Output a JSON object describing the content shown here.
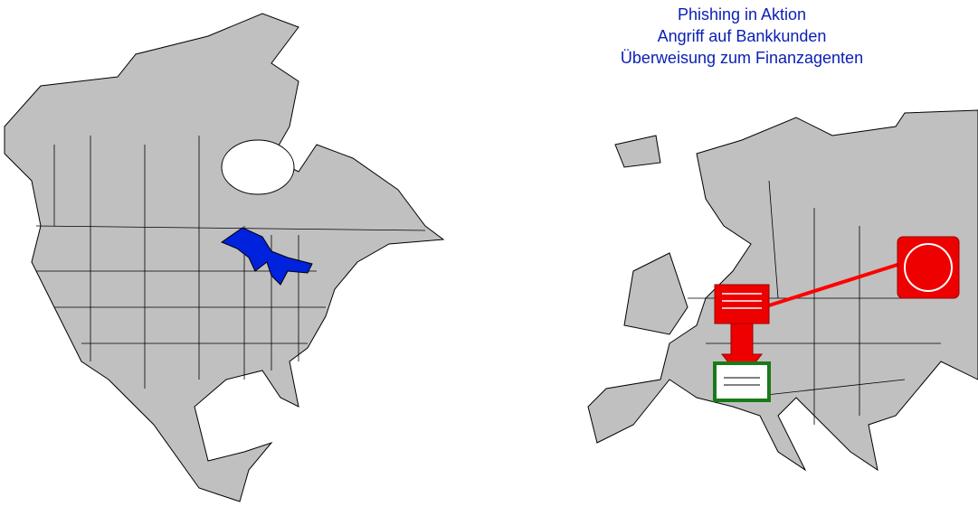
{
  "title_lines": [
    "Phishing in Aktion",
    "Angriff auf Bankkunden",
    "Überweisung zum Finanzagenten"
  ]
}
